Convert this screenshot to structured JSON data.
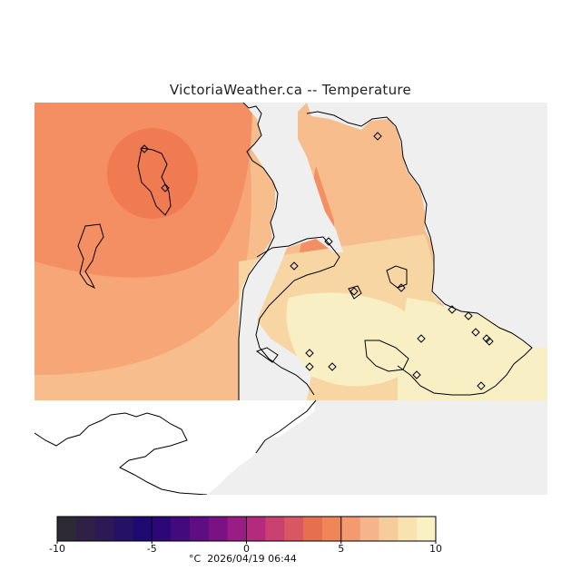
{
  "title": "VictoriaWeather.ca -- Temperature",
  "legend": {
    "min": -10,
    "max": 10,
    "ticks": [
      "-10",
      "-5",
      "0",
      "5",
      "10"
    ],
    "unit": "°C",
    "colors": [
      "#2d2a35",
      "#2f2145",
      "#2b1a55",
      "#251266",
      "#1f0a72",
      "#2b0778",
      "#420a7d",
      "#5e0d82",
      "#7a1284",
      "#9a1d85",
      "#b42a7c",
      "#c94071",
      "#d85763",
      "#e66f50",
      "#ef8558",
      "#f49a70",
      "#f5b489",
      "#f7cc9c",
      "#f8e2b0",
      "#f9f1c4"
    ]
  },
  "footer": {
    "unit": "°C",
    "timestamp": "2026/04/19 06:44"
  },
  "map": {
    "band_colors": {
      "warmest": "#f07a52",
      "warm": "#f48f63",
      "mild": "#f6a677",
      "mid": "#f7bd8c",
      "cool": "#f8d6a4",
      "coolest": "#f9efc4"
    },
    "background_color": "#efefef",
    "station_count": 18
  }
}
